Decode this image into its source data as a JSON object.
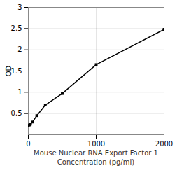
{
  "chart_data": {
    "type": "line",
    "x": [
      0,
      15.625,
      31.25,
      62.5,
      125,
      250,
      500,
      1000,
      2000
    ],
    "values": [
      0.21,
      0.23,
      0.25,
      0.3,
      0.45,
      0.7,
      0.97,
      1.65,
      2.48
    ],
    "xlabel": [
      "Mouse Nuclear RNA Export Factor 1",
      "Concentration (pg/ml)"
    ],
    "ylabel": "OD",
    "xlim": [
      0,
      2000
    ],
    "xticks": [
      0,
      1000,
      2000
    ],
    "ylim": [
      0,
      3.0
    ],
    "yticks": [
      0.5,
      1,
      1.5,
      2,
      2.5,
      3
    ],
    "grid": true,
    "marker": "square"
  }
}
